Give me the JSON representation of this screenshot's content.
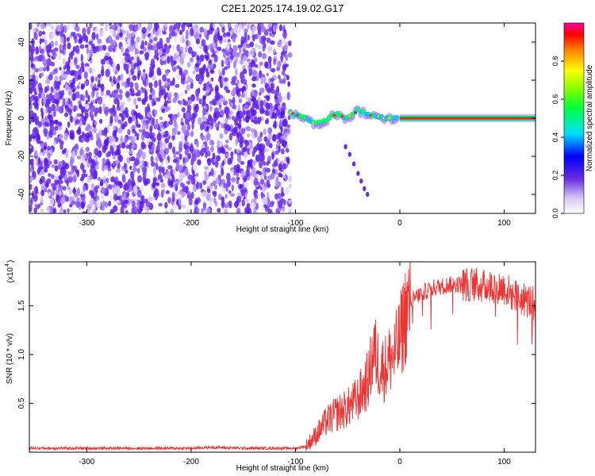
{
  "title": "C2E1.2025.174.19.02.G17",
  "chart_data": [
    {
      "type": "heatmap",
      "title": "C2E1.2025.174.19.02.G17",
      "xlabel": "Height of straight line (km)",
      "ylabel": "Frequency (Hz)",
      "xlim": [
        -355,
        130
      ],
      "ylim": [
        -50,
        50
      ],
      "xticks": [
        -300,
        -200,
        -100,
        0,
        100
      ],
      "yticks": [
        -40,
        -20,
        0,
        20,
        40
      ],
      "noise_region_x": [
        -355,
        -105
      ],
      "ridge_trace": {
        "name": "",
        "points": [
          {
            "x": -105,
            "y": 3
          },
          {
            "x": -100,
            "y": 2
          },
          {
            "x": -95,
            "y": 1
          },
          {
            "x": -90,
            "y": 0
          },
          {
            "x": -85,
            "y": -2
          },
          {
            "x": -80,
            "y": -3
          },
          {
            "x": -75,
            "y": -2
          },
          {
            "x": -70,
            "y": -1
          },
          {
            "x": -65,
            "y": 1
          },
          {
            "x": -60,
            "y": 2
          },
          {
            "x": -55,
            "y": 1
          },
          {
            "x": -50,
            "y": 0
          },
          {
            "x": -45,
            "y": 2
          },
          {
            "x": -40,
            "y": 4
          },
          {
            "x": -35,
            "y": 3
          },
          {
            "x": -30,
            "y": 2
          },
          {
            "x": -25,
            "y": 1
          },
          {
            "x": -20,
            "y": 1
          },
          {
            "x": -15,
            "y": 0
          },
          {
            "x": -10,
            "y": 0
          },
          {
            "x": -5,
            "y": 0
          },
          {
            "x": 0,
            "y": 0
          },
          {
            "x": 130,
            "y": 0
          }
        ]
      },
      "secondary_trace": [
        {
          "x": -52,
          "y": -15
        },
        {
          "x": -48,
          "y": -19
        },
        {
          "x": -44,
          "y": -24
        },
        {
          "x": -40,
          "y": -29
        },
        {
          "x": -37,
          "y": -33
        },
        {
          "x": -34,
          "y": -37
        },
        {
          "x": -31,
          "y": -40
        }
      ],
      "colorbar": {
        "label": "Normalized spectral amplitude",
        "range": [
          0,
          1
        ],
        "ticks": [
          0.0,
          0.2,
          0.4,
          0.6,
          0.8
        ],
        "tick_labels": [
          "0.0",
          "0.2",
          "0.4",
          "0.6",
          "0.8"
        ]
      }
    },
    {
      "type": "line",
      "xlabel": "Height of straight line (km)",
      "ylabel": "SNR (10 * v/v)",
      "y_multiplier": "(x10",
      "y_multiplier_exp": "4",
      "xlim": [
        -355,
        130
      ],
      "ylim": [
        0,
        1.95
      ],
      "xticks": [
        -300,
        -200,
        -100,
        0,
        100
      ],
      "yticks": [
        0.5,
        1.0,
        1.5
      ],
      "ytick_labels": [
        "0.5",
        "1.0",
        "1.5"
      ],
      "color": "#ee3333",
      "series": [
        {
          "name": "",
          "x": [
            -355,
            -300,
            -250,
            -200,
            -180,
            -150,
            -100,
            -90,
            -80,
            -70,
            -60,
            -50,
            -40,
            -30,
            -25,
            -20,
            -15,
            -10,
            -5,
            0,
            5,
            10,
            20,
            30,
            40,
            50,
            60,
            70,
            80,
            90,
            100,
            110,
            120,
            130
          ],
          "y": [
            0.04,
            0.04,
            0.04,
            0.04,
            0.05,
            0.04,
            0.04,
            0.06,
            0.18,
            0.32,
            0.4,
            0.45,
            0.55,
            0.75,
            1.05,
            0.9,
            0.85,
            0.95,
            1.0,
            1.15,
            1.4,
            1.55,
            1.62,
            1.68,
            1.7,
            1.72,
            1.72,
            1.72,
            1.7,
            1.7,
            1.68,
            1.6,
            1.55,
            1.55
          ]
        }
      ]
    }
  ]
}
